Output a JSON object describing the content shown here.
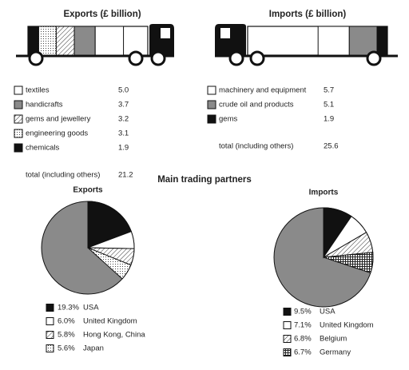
{
  "heading": "Main trading partners",
  "chart_data": [
    {
      "type": "truck",
      "title": "Exports (£ billion)",
      "categories": [
        "textiles",
        "handicrafts",
        "gems and jewellery",
        "engineering goods",
        "chemicals"
      ],
      "values": [
        5.0,
        3.7,
        3.2,
        3.1,
        1.9
      ],
      "value_labels": [
        "5.0",
        "3.7",
        "3.2",
        "3.1",
        "1.9"
      ],
      "colors": [
        "#ffffff",
        "#8a8a8a",
        "url(#hatch)",
        "url(#dots)",
        "#111111"
      ],
      "total_label": "total (including others)",
      "total": 21.2
    },
    {
      "type": "truck",
      "title": "Imports (£ billion)",
      "categories": [
        "machinery and equipment",
        "crude oil and products",
        "gems"
      ],
      "values": [
        5.7,
        5.1,
        1.9
      ],
      "value_labels": [
        "5.7",
        "5.1",
        "1.9"
      ],
      "colors": [
        "#ffffff",
        "#8a8a8a",
        "#111111"
      ],
      "total_label": "total (including others)",
      "total": 25.6
    },
    {
      "type": "pie",
      "title": "Exports",
      "categories": [
        "USA",
        "United Kingdom",
        "Hong Kong, China",
        "Japan"
      ],
      "values": [
        19.3,
        6.0,
        5.8,
        5.6
      ],
      "value_labels": [
        "19.3%",
        "6.0%",
        "5.8%",
        "5.6%"
      ],
      "colors": [
        "#111111",
        "#ffffff",
        "url(#hatch)",
        "url(#dots)"
      ],
      "others_color": "#8a8a8a"
    },
    {
      "type": "pie",
      "title": "Imports",
      "categories": [
        "USA",
        "United Kingdom",
        "Belgium",
        "Germany"
      ],
      "values": [
        9.5,
        7.1,
        6.8,
        6.7
      ],
      "value_labels": [
        "9.5%",
        "7.1%",
        "6.8%",
        "6.7%"
      ],
      "colors": [
        "#111111",
        "#ffffff",
        "url(#hatch)",
        "url(#check)"
      ],
      "others_color": "#8a8a8a"
    }
  ]
}
